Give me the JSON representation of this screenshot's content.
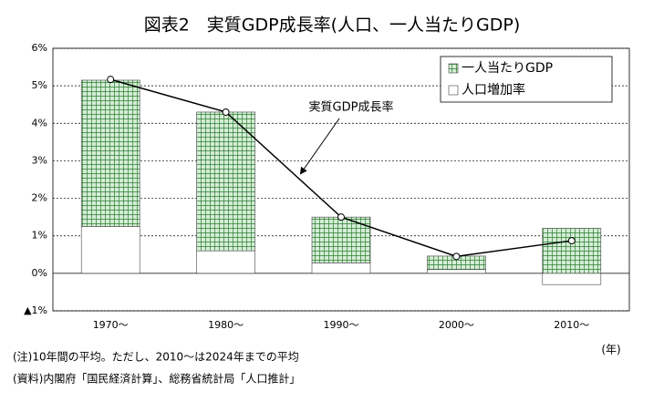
{
  "chart_data": {
    "type": "bar",
    "stacked": true,
    "title": "図表2　実質GDP成長率(人口、一人当たりGDP)",
    "categories": [
      "1970～",
      "1980～",
      "1990～",
      "2000～",
      "2010～"
    ],
    "series": [
      {
        "name": "一人当たりGDP",
        "color": "#d4edd6",
        "pattern_color": "#2e7d32",
        "values": [
          3.9,
          3.7,
          1.22,
          0.36,
          1.2
        ]
      },
      {
        "name": "人口増加率",
        "color": "#ffffff",
        "values": [
          1.25,
          0.6,
          0.28,
          0.1,
          -0.3
        ]
      },
      {
        "name": "実質GDP成長率",
        "type": "line",
        "color": "#000000",
        "values": [
          5.17,
          4.3,
          1.5,
          0.45,
          0.87
        ]
      }
    ],
    "ylim": [
      -1,
      6
    ],
    "yticks": [
      {
        "value": -1,
        "label": "▲1%"
      },
      {
        "value": 0,
        "label": "0%"
      },
      {
        "value": 1,
        "label": "1%"
      },
      {
        "value": 2,
        "label": "2%"
      },
      {
        "value": 3,
        "label": "3%"
      },
      {
        "value": 4,
        "label": "4%"
      },
      {
        "value": 5,
        "label": "5%"
      },
      {
        "value": 6,
        "label": "6%"
      }
    ],
    "grid": true,
    "legend": "upper right",
    "x_unit": "(年)",
    "notes": [
      "(注)10年間の平均。ただし、2010～は2024年までの平均",
      "(資料)内閣府「国民経済計算」、総務省統計局「人口推計」"
    ]
  }
}
